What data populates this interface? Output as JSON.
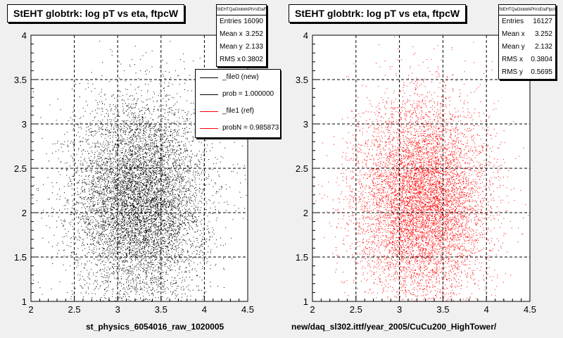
{
  "chart_data": [
    {
      "type": "scatter",
      "title": "StEHT globtrk: log pT vs eta, ftpcW",
      "xlabel": "st_physics_6054016_raw_1020005",
      "ylabel": "",
      "xlim": [
        2,
        4.5
      ],
      "ylim": [
        1,
        4
      ],
      "x_ticks": [
        "2",
        "2.5",
        "3",
        "3.5",
        "4",
        "4.5"
      ],
      "y_ticks": [
        "1",
        "1.5",
        "2",
        "2.5",
        "3",
        "3.5",
        "4"
      ],
      "grid": true,
      "color": "#000000",
      "distribution": {
        "entries": 16090,
        "mean_x": 3.252,
        "mean_y": 2.133,
        "rms_x": 0.3802
      },
      "stats": {
        "title": "StEHTQaGlobtrkPtVsEtaFtpcW",
        "rows": [
          {
            "label": "Entries",
            "value": "16090"
          },
          {
            "label": "Mean x",
            "value": "3.252"
          },
          {
            "label": "Mean y",
            "value": "2.133"
          },
          {
            "label": "RMS x",
            "value": "0.3802"
          }
        ]
      },
      "legend": {
        "placement": "top-right",
        "entries": [
          {
            "label": "_file0 (new)",
            "color": "#000000"
          },
          {
            "label": "prob = 1.000000",
            "color": "#000000"
          },
          {
            "label": "_file1 (ref)",
            "color": "#ff0000"
          },
          {
            "label": "probN = 0.985873",
            "color": "#ff0000"
          }
        ]
      }
    },
    {
      "type": "scatter",
      "title": "StEHT globtrk: log pT vs eta, ftpcW",
      "xlabel": "new/daq_sl302.ittf/year_2005/CuCu200_HighTower/",
      "ylabel": "",
      "xlim": [
        2,
        4.5
      ],
      "ylim": [
        1,
        4
      ],
      "x_ticks": [
        "2",
        "2.5",
        "3",
        "3.5",
        "4",
        "4.5"
      ],
      "y_ticks": [
        "1",
        "1.5",
        "2",
        "2.5",
        "3",
        "3.5",
        "4"
      ],
      "grid": true,
      "color": "#ff0000",
      "distribution": {
        "entries": 16127,
        "mean_x": 3.252,
        "mean_y": 2.132,
        "rms_x": 0.3804,
        "rms_y": 0.5695
      },
      "stats": {
        "title": "StEHTQaGlobtrkPtVsEtaFtpcW",
        "rows": [
          {
            "label": "Entries",
            "value": "16127"
          },
          {
            "label": "Mean x",
            "value": "3.252"
          },
          {
            "label": "Mean y",
            "value": "2.132"
          },
          {
            "label": "RMS x",
            "value": "0.3804"
          },
          {
            "label": "RMS y",
            "value": "0.5695"
          }
        ]
      }
    }
  ]
}
